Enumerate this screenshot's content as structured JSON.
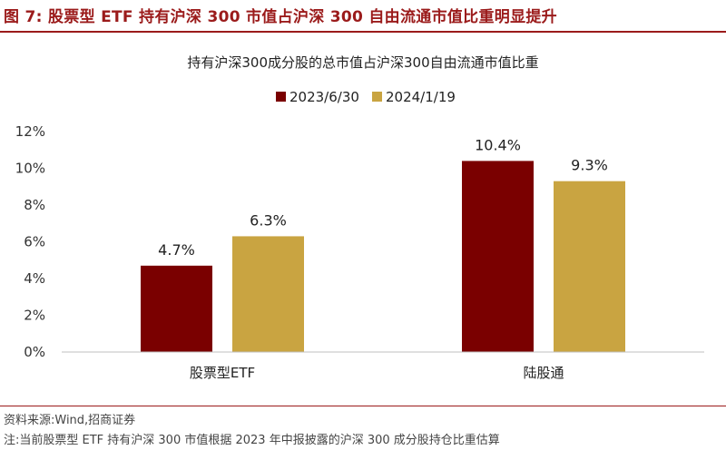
{
  "figure_title": "图 7:  股票型 ETF 持有沪深 300 市值占沪深 300 自由流通市值比重明显提升",
  "source_note": "资料来源:Wind,招商证券",
  "footnote": "注:当前股票型 ETF 持有沪深 300 市值根据 2023 年中报披露的沪深 300 成分股持仓比重估算",
  "colors": {
    "brand": "#9b1b1b",
    "series1": "#7a0000",
    "series2": "#c9a441",
    "axis": "#bfbfbf"
  },
  "chart_data": {
    "type": "bar",
    "title": "持有沪深300成分股的总市值占沪深300自由流通市值比重",
    "xlabel": "",
    "ylabel": "",
    "categories": [
      "股票型ETF",
      "陆股通"
    ],
    "series": [
      {
        "name": "2023/6/30",
        "values": [
          4.7,
          10.4
        ],
        "labels": [
          "4.7%",
          "10.4%"
        ]
      },
      {
        "name": "2024/1/19",
        "values": [
          6.3,
          9.3
        ],
        "labels": [
          "6.3%",
          "9.3%"
        ]
      }
    ],
    "ylim": [
      0,
      12
    ],
    "yticks": [
      0,
      2,
      4,
      6,
      8,
      10,
      12
    ],
    "ytick_labels": [
      "0%",
      "2%",
      "4%",
      "6%",
      "8%",
      "10%",
      "12%"
    ],
    "legend_position": "top-center",
    "grid": false
  }
}
